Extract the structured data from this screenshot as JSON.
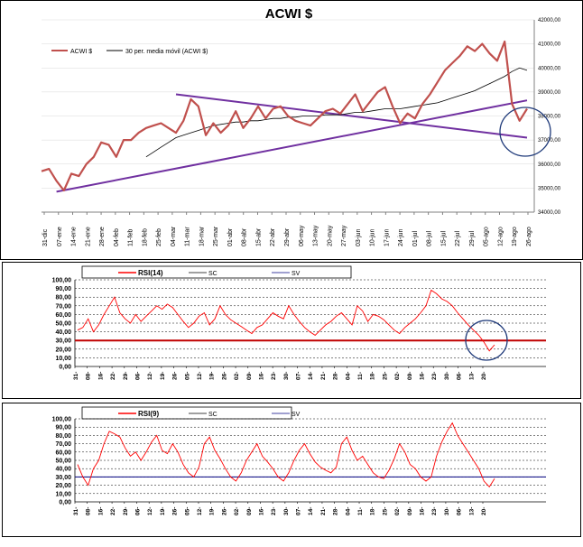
{
  "chart_data": [
    {
      "type": "line",
      "title": "ACWI $",
      "ylim": [
        34000,
        42000
      ],
      "y_ticks": [
        "42000,00",
        "41000,00",
        "40000,00",
        "39000,00",
        "38000,00",
        "37000,00",
        "36000,00",
        "35000,00",
        "34000,00"
      ],
      "x_labels": [
        "31-dic",
        "07-ene",
        "14-ene",
        "21-ene",
        "28-ene",
        "04-feb",
        "11-feb",
        "18-feb",
        "25-feb",
        "04-mar",
        "11-mar",
        "18-mar",
        "25-mar",
        "01-abr",
        "08-abr",
        "15-abr",
        "22-abr",
        "29-abr",
        "06-may",
        "13-may",
        "20-may",
        "27-may",
        "03-jun",
        "10-jun",
        "17-jun",
        "24-jun",
        "01-jul",
        "08-jul",
        "15-jul",
        "22-jul",
        "29-jul",
        "05-ago",
        "12-ago",
        "19-ago",
        "26-ago"
      ],
      "legend": [
        "ACWI $",
        "30 per. media móvil (ACWI $)"
      ],
      "series": [
        {
          "name": "ACWI $",
          "color": "#c0504d",
          "values": [
            35700,
            35800,
            35300,
            34900,
            35600,
            35500,
            36000,
            36300,
            36900,
            36800,
            36300,
            37000,
            37000,
            37300,
            37500,
            37600,
            37700,
            37500,
            37300,
            37800,
            38700,
            38400,
            37200,
            37700,
            37300,
            37600,
            38200,
            37500,
            37900,
            38400,
            37900,
            38300,
            38400,
            38000,
            37800,
            37700,
            37600,
            37900,
            38200,
            38300,
            38100,
            38500,
            38900,
            38200,
            38600,
            39000,
            39200,
            38400,
            37700,
            38100,
            37900,
            38500,
            38900,
            39400,
            39900,
            40200,
            40500,
            40900,
            40700,
            41000,
            40600,
            40300,
            41100,
            38500,
            37800,
            38300
          ]
        },
        {
          "name": "30 per. media móvil (ACWI $)",
          "color": "#000000",
          "values": [
            null,
            null,
            null,
            null,
            null,
            null,
            null,
            null,
            null,
            null,
            null,
            null,
            null,
            null,
            36300,
            36500,
            36700,
            36900,
            37100,
            37200,
            37300,
            37400,
            37500,
            37600,
            37650,
            37700,
            37750,
            37750,
            37800,
            37800,
            37850,
            37900,
            37900,
            37950,
            37950,
            38000,
            38000,
            38000,
            38050,
            38050,
            38050,
            38100,
            38150,
            38150,
            38200,
            38250,
            38300,
            38300,
            38300,
            38350,
            38400,
            38450,
            38500,
            38550,
            38650,
            38750,
            38850,
            38950,
            39050,
            39200,
            39350,
            39500,
            39650,
            39850,
            40000,
            39900
          ]
        },
        {
          "name": "trend-support",
          "color": "#7030a0",
          "points": [
            [
              2,
              34850
            ],
            [
              65,
              38650
            ]
          ]
        },
        {
          "name": "trend-resistance",
          "color": "#7030a0",
          "points": [
            [
              18,
              38900
            ],
            [
              65,
              37100
            ]
          ]
        }
      ]
    },
    {
      "type": "line",
      "ylim": [
        0,
        100
      ],
      "y_ticks": [
        "100,00",
        "90,00",
        "80,00",
        "70,00",
        "60,00",
        "50,00",
        "40,00",
        "30,00",
        "20,00",
        "10,00",
        "0,00"
      ],
      "x_labels": [
        "31-",
        "08-",
        "16-",
        "22-",
        "29-",
        "06-",
        "12-",
        "19-",
        "26-",
        "05-",
        "12-",
        "19-",
        "26-",
        "02-",
        "09-",
        "16-",
        "23-",
        "30-",
        "07-",
        "14-",
        "21-",
        "28-",
        "04-",
        "11-",
        "18-",
        "25-",
        "02-",
        "09-",
        "16-",
        "23-",
        "30-",
        "06-",
        "13-",
        "20-"
      ],
      "legend": [
        "RSI(14)",
        "SC",
        "SV"
      ],
      "series": [
        {
          "name": "RSI(14)",
          "color": "#ff0000",
          "values": [
            42,
            45,
            55,
            40,
            48,
            60,
            70,
            80,
            62,
            55,
            50,
            60,
            52,
            58,
            64,
            70,
            66,
            72,
            68,
            60,
            52,
            45,
            50,
            58,
            62,
            48,
            55,
            70,
            60,
            54,
            50,
            46,
            42,
            38,
            45,
            48,
            55,
            62,
            58,
            55,
            70,
            60,
            52,
            45,
            40,
            36,
            42,
            48,
            52,
            58,
            62,
            55,
            48,
            70,
            64,
            52,
            60,
            58,
            54,
            48,
            42,
            38,
            45,
            50,
            55,
            62,
            70,
            88,
            84,
            78,
            75,
            70,
            62,
            55,
            48,
            42,
            36,
            28,
            18,
            25
          ]
        },
        {
          "name": "level",
          "color": "#c00000",
          "values": [
            30,
            30
          ]
        }
      ]
    },
    {
      "type": "line",
      "ylim": [
        0,
        100
      ],
      "y_ticks": [
        "100,00",
        "90,00",
        "80,00",
        "70,00",
        "60,00",
        "50,00",
        "40,00",
        "30,00",
        "20,00",
        "10,00",
        "0,00"
      ],
      "x_labels": [
        "31-",
        "08-",
        "16-",
        "22-",
        "29-",
        "06-",
        "12-",
        "19-",
        "26-",
        "05-",
        "12-",
        "19-",
        "26-",
        "02-",
        "09-",
        "16-",
        "23-",
        "30-",
        "07-",
        "14-",
        "21-",
        "28-",
        "04-",
        "11-",
        "18-",
        "25-",
        "02-",
        "09-",
        "16-",
        "23-",
        "30-",
        "06-",
        "13-",
        "20-"
      ],
      "legend": [
        "RSI(9)",
        "SC",
        "SV"
      ],
      "series": [
        {
          "name": "RSI(9)",
          "color": "#ff0000",
          "values": [
            45,
            30,
            20,
            40,
            50,
            70,
            85,
            82,
            78,
            65,
            55,
            60,
            50,
            60,
            72,
            80,
            62,
            58,
            70,
            60,
            45,
            35,
            30,
            42,
            70,
            78,
            62,
            52,
            40,
            30,
            25,
            35,
            50,
            60,
            70,
            55,
            48,
            40,
            30,
            25,
            35,
            50,
            62,
            70,
            58,
            48,
            42,
            38,
            35,
            42,
            70,
            78,
            62,
            50,
            55,
            45,
            35,
            30,
            28,
            38,
            52,
            70,
            60,
            45,
            40,
            30,
            25,
            30,
            55,
            72,
            85,
            95,
            80,
            70,
            60,
            50,
            40,
            25,
            18,
            28
          ]
        },
        {
          "name": "level",
          "color": "#000080",
          "values": [
            30,
            30
          ]
        }
      ]
    }
  ]
}
